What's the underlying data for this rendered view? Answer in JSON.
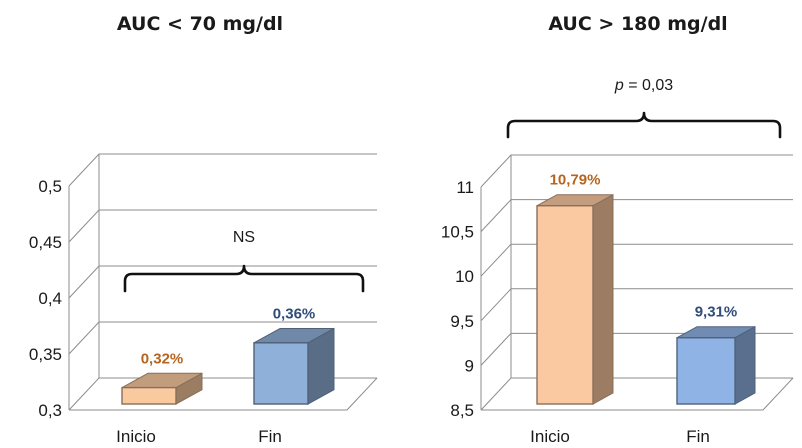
{
  "chart_data": [
    {
      "type": "bar",
      "title": "AUC < 70 mg/dl",
      "categories": [
        "Inicio",
        "Fin"
      ],
      "values": [
        0.32,
        0.36
      ],
      "data_labels": [
        "0,32%",
        "0,36%"
      ],
      "bar_colors": [
        "#f9c9a0",
        "#8fb0d8"
      ],
      "label_colors": [
        "#b8641c",
        "#2f4d78"
      ],
      "ylim": [
        0.3,
        0.5
      ],
      "yticks": [
        0.3,
        0.35,
        0.4,
        0.45,
        0.5
      ],
      "ytick_labels": [
        "0,3",
        "0,35",
        "0,4",
        "0,45",
        "0,5"
      ],
      "annotation": "NS",
      "style": "3d",
      "grid": true,
      "xlabel": "",
      "ylabel": ""
    },
    {
      "type": "bar",
      "title": "AUC > 180 mg/dl",
      "categories": [
        "Inicio",
        "Fin"
      ],
      "values": [
        10.79,
        9.31
      ],
      "data_labels": [
        "10,79%",
        "9,31%"
      ],
      "bar_colors": [
        "#fbc9a1",
        "#8fb3e4"
      ],
      "label_colors": [
        "#b8641c",
        "#2f4d78"
      ],
      "ylim": [
        8.5,
        11
      ],
      "yticks": [
        8.5,
        9,
        9.5,
        10,
        10.5,
        11
      ],
      "ytick_labels": [
        "8,5",
        "9",
        "9,5",
        "10",
        "10,5",
        "11"
      ],
      "annotation_p": "p",
      "annotation_rest": " = 0,03",
      "style": "3d",
      "grid": true,
      "xlabel": "",
      "ylabel": ""
    }
  ]
}
